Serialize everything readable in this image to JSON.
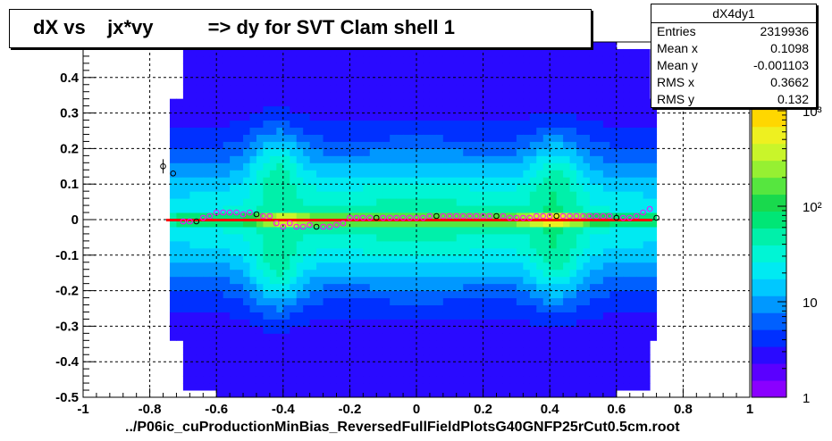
{
  "title": "dX vs    jx*vy          => dy for SVT Clam shell 1",
  "footer": "../P06ic_cuProductionMinBias_ReversedFullFieldPlotsG40GNFP25rCut0.5cm.root",
  "stats": {
    "name": "dX4dy1",
    "rows": [
      {
        "key": "Entries",
        "value": "2319936"
      },
      {
        "key": "Mean x",
        "value": "0.1098"
      },
      {
        "key": "Mean y",
        "value": "-0.001103"
      },
      {
        "key": "RMS x",
        "value": "0.3662"
      },
      {
        "key": "RMS y",
        "value": "0.132"
      }
    ]
  },
  "chart_data": {
    "type": "heatmap",
    "xlim": [
      -1,
      1
    ],
    "ylim": [
      -0.5,
      0.5
    ],
    "x_ticks": [
      "-1",
      "-0.8",
      "-0.6",
      "-0.4",
      "-0.2",
      "0",
      "0.2",
      "0.4",
      "0.6",
      "0.8",
      "1"
    ],
    "y_ticks": [
      "-0.5",
      "-0.4",
      "-0.3",
      "-0.2",
      "-0.1",
      "0",
      "0.1",
      "0.2",
      "0.3",
      "0.4"
    ],
    "z_scale": "log",
    "z_ticks": [
      "1",
      "10",
      "10²",
      "10³"
    ],
    "grid": true,
    "fit_line": {
      "x": [
        -0.75,
        0.72
      ],
      "y": [
        0.0,
        0.0
      ],
      "color": "#ff0000"
    },
    "profile_points": {
      "x": [
        -0.76,
        -0.73,
        -0.7,
        -0.68,
        -0.66,
        -0.64,
        -0.62,
        -0.6,
        -0.58,
        -0.56,
        -0.54,
        -0.52,
        -0.5,
        -0.48,
        -0.46,
        -0.44,
        -0.42,
        -0.4,
        -0.38,
        -0.36,
        -0.34,
        -0.32,
        -0.3,
        -0.28,
        -0.26,
        -0.24,
        -0.22,
        -0.2,
        -0.18,
        -0.16,
        -0.14,
        -0.12,
        -0.1,
        -0.08,
        -0.06,
        -0.04,
        -0.02,
        0.0,
        0.02,
        0.04,
        0.06,
        0.08,
        0.1,
        0.12,
        0.14,
        0.16,
        0.18,
        0.2,
        0.22,
        0.24,
        0.26,
        0.28,
        0.3,
        0.32,
        0.34,
        0.36,
        0.38,
        0.4,
        0.42,
        0.44,
        0.46,
        0.48,
        0.5,
        0.52,
        0.54,
        0.56,
        0.58,
        0.6,
        0.62,
        0.64,
        0.66,
        0.68,
        0.7,
        0.72
      ],
      "y": [
        0.15,
        0.13,
        -0.005,
        -0.005,
        -0.005,
        0.005,
        0.01,
        0.02,
        0.02,
        0.02,
        0.02,
        0.015,
        0.02,
        0.015,
        0.01,
        0.01,
        -0.01,
        -0.02,
        -0.01,
        -0.02,
        -0.02,
        -0.015,
        -0.02,
        -0.02,
        -0.02,
        -0.015,
        -0.01,
        0.005,
        0.005,
        0.005,
        0.005,
        0.005,
        0.005,
        0.005,
        0.005,
        0.005,
        0.005,
        0.005,
        0.005,
        0.01,
        0.01,
        0.01,
        0.01,
        0.01,
        0.01,
        0.01,
        0.01,
        0.01,
        0.01,
        0.01,
        0.01,
        0.005,
        0.005,
        0.005,
        0.005,
        0.01,
        0.01,
        0.01,
        0.01,
        0.01,
        0.01,
        0.01,
        0.01,
        0.01,
        0.01,
        0.01,
        0.01,
        0.005,
        0.005,
        0.005,
        0.01,
        0.02,
        0.03,
        0.005
      ]
    },
    "palette": [
      "#8a00ff",
      "#5a00ff",
      "#2a0aff",
      "#0030ff",
      "#0060ff",
      "#0098ff",
      "#00c8ff",
      "#00eaf2",
      "#00f5d5",
      "#00f0aa",
      "#00e676",
      "#19d94d",
      "#56e63f",
      "#96f032",
      "#c9f52a",
      "#eef020",
      "#ffd700",
      "#ffa400",
      "#ff6e00",
      "#ff3c00",
      "#e80000"
    ]
  }
}
